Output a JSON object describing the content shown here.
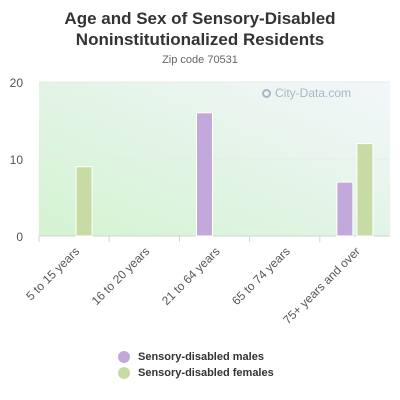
{
  "title_line1": "Age and Sex of Sensory-Disabled",
  "title_line2": "Noninstitutionalized Residents",
  "subtitle": "Zip code 70531",
  "watermark": "City-Data.com",
  "chart_data": {
    "type": "bar",
    "categories": [
      "5 to 15 years",
      "16 to 20 years",
      "21 to 64 years",
      "65 to 74 years",
      "75+ years and over"
    ],
    "series": [
      {
        "name": "Sensory-disabled males",
        "color": "#c3a8dc",
        "values": [
          0,
          0,
          16,
          0,
          7
        ]
      },
      {
        "name": "Sensory-disabled females",
        "color": "#c8dba4",
        "values": [
          9,
          0,
          0,
          0,
          12
        ]
      }
    ],
    "yticks": [
      0,
      10,
      20
    ],
    "ylim": [
      0,
      20
    ],
    "grid": true,
    "legend": "bottom"
  }
}
